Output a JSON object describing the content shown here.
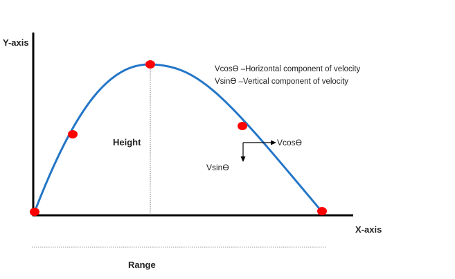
{
  "axes": {
    "y_label": "Y-axis",
    "x_label": "X-axis"
  },
  "labels": {
    "height": "Height",
    "range": "Range",
    "vcos": "Vcosϴ",
    "vsin": "Vsinϴ"
  },
  "legend": {
    "line1": "Vcosϴ –Horizontal component of velocity",
    "line2": "Vsinϴ –Vertical component of velocity"
  },
  "colors": {
    "trajectory": "#2476c7",
    "point": "#ff0000",
    "axis": "#000000",
    "guide": "#777777"
  }
}
